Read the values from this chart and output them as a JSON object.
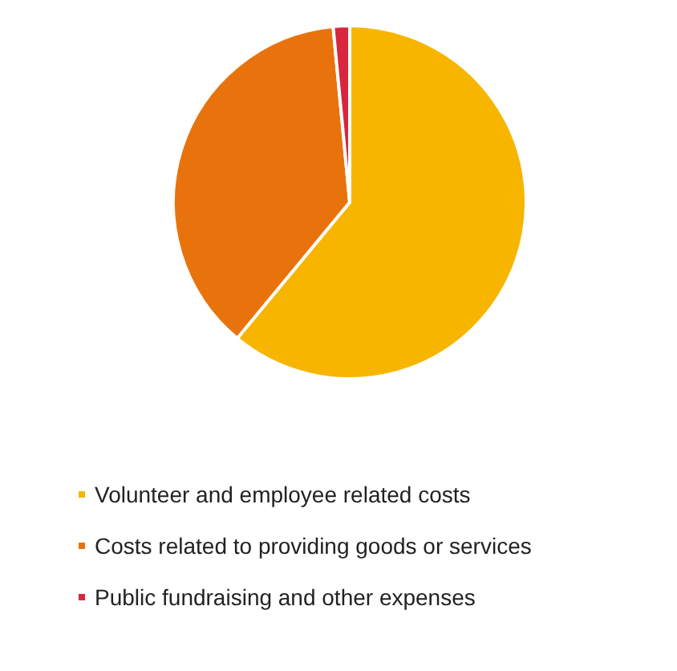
{
  "chart_data": {
    "type": "pie",
    "categories": [
      "Volunteer and employee related costs",
      "Costs related to providing goods or services",
      "Public fundraising and other expenses"
    ],
    "values": [
      61,
      37.5,
      1.5
    ],
    "colors": [
      "#f7b500",
      "#e8730c",
      "#d7263d"
    ],
    "legend": "bottom"
  }
}
